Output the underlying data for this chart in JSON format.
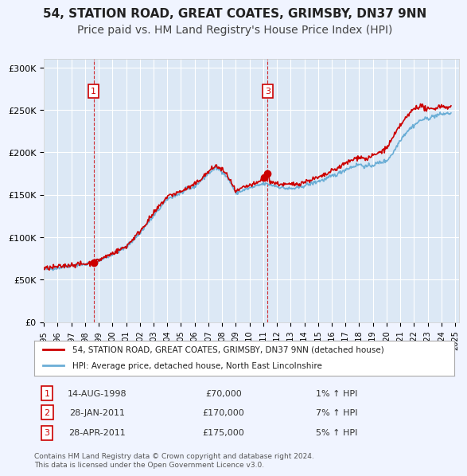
{
  "title": "54, STATION ROAD, GREAT COATES, GRIMSBY, DN37 9NN",
  "subtitle": "Price paid vs. HM Land Registry's House Price Index (HPI)",
  "title_fontsize": 11,
  "subtitle_fontsize": 10,
  "background_color": "#f0f4ff",
  "plot_bg_color": "#dce8f5",
  "legend_label_red": "54, STATION ROAD, GREAT COATES, GRIMSBY, DN37 9NN (detached house)",
  "legend_label_blue": "HPI: Average price, detached house, North East Lincolnshire",
  "transactions": [
    {
      "num": 1,
      "date": "14-AUG-1998",
      "price": 70000,
      "pct": "1%",
      "direction": "↑",
      "x_year": 1998.62
    },
    {
      "num": 2,
      "date": "28-JAN-2011",
      "price": 170000,
      "pct": "7%",
      "direction": "↑",
      "x_year": 2011.07
    },
    {
      "num": 3,
      "date": "28-APR-2011",
      "price": 175000,
      "pct": "5%",
      "direction": "↑",
      "x_year": 2011.32
    }
  ],
  "vline_transactions": [
    1,
    3
  ],
  "vline_x": [
    1998.62,
    2011.32
  ],
  "footer": "Contains HM Land Registry data © Crown copyright and database right 2024.\nThis data is licensed under the Open Government Licence v3.0.",
  "ylim": [
    0,
    310000
  ],
  "xlim_start": 1995.0,
  "xlim_end": 2025.3,
  "yticks": [
    0,
    50000,
    100000,
    150000,
    200000,
    250000,
    300000
  ],
  "ytick_labels": [
    "£0",
    "£50K",
    "£100K",
    "£150K",
    "£200K",
    "£250K",
    "£300K"
  ],
  "xtick_years": [
    1995,
    1996,
    1997,
    1998,
    1999,
    2000,
    2001,
    2002,
    2003,
    2004,
    2005,
    2006,
    2007,
    2008,
    2009,
    2010,
    2011,
    2012,
    2013,
    2014,
    2015,
    2016,
    2017,
    2018,
    2019,
    2020,
    2021,
    2022,
    2023,
    2024,
    2025
  ],
  "hpi_color": "#6baed6",
  "price_color": "#cc0000",
  "vline_color": "#cc0000",
  "marker_color": "#cc0000"
}
